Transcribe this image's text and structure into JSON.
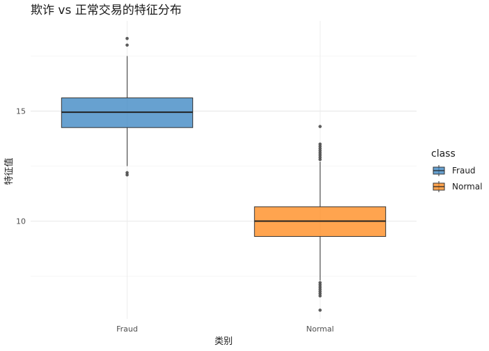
{
  "chart_data": {
    "type": "box",
    "title": "欺诈 vs 正常交易的特征分布",
    "xlabel": "类别",
    "ylabel": "特征值",
    "categories": [
      "Fraud",
      "Normal"
    ],
    "ylim": [
      5.55,
      19.1
    ],
    "y_ticks": [
      10,
      15
    ],
    "grid": true,
    "legend": {
      "title": "class",
      "position": "right",
      "entries": [
        "Fraud",
        "Normal"
      ]
    },
    "colors": {
      "Fraud": "#3c87c3",
      "Normal": "#ff8a1e"
    },
    "series": [
      {
        "name": "Fraud",
        "whisker_low": 12.5,
        "q1": 14.25,
        "median": 14.95,
        "q3": 15.6,
        "whisker_high": 17.5,
        "outliers": [
          12.1,
          12.2,
          18.0,
          18.3
        ]
      },
      {
        "name": "Normal",
        "whisker_low": 7.3,
        "q1": 9.3,
        "median": 10.0,
        "q3": 10.65,
        "whisker_high": 12.7,
        "outliers": [
          5.95,
          6.6,
          6.7,
          6.8,
          6.9,
          7.0,
          7.1,
          7.2,
          12.8,
          12.9,
          13.0,
          13.1,
          13.2,
          13.3,
          13.4,
          13.5,
          14.3
        ]
      }
    ]
  }
}
